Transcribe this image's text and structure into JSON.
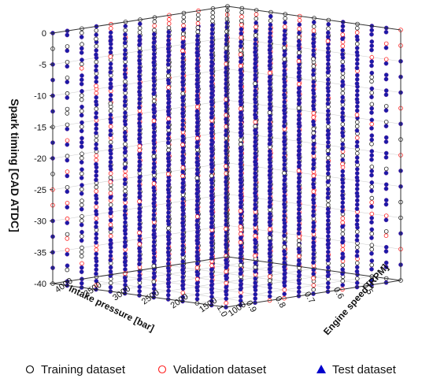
{
  "chart_data": {
    "type": "scatter",
    "title": "",
    "axes": {
      "x": {
        "label": "Intake pressure [bar]",
        "range": [
          0.4,
          1.0
        ],
        "ticks": [
          "0.5",
          "0.6",
          "0.7",
          "0.8",
          "0.9",
          "1.0"
        ]
      },
      "y": {
        "label": "Engine speed [RPM]",
        "range": [
          1000,
          4000
        ],
        "ticks": [
          "1000",
          "1500",
          "2000",
          "2500",
          "3000",
          "3500",
          "4000"
        ]
      },
      "z": {
        "label": "Spark timing [CAD ATDC]",
        "range": [
          -40,
          0
        ],
        "ticks": [
          "0",
          "-5",
          "-10",
          "-15",
          "-20",
          "-25",
          "-30",
          "-35",
          "-40"
        ]
      }
    },
    "grid": true,
    "series": [
      {
        "name": "Training dataset",
        "marker": "open-circle",
        "color": "#000000",
        "x": [
          0.4,
          0.45,
          0.5,
          0.55,
          0.6,
          0.65,
          0.7,
          0.75,
          0.8,
          0.85,
          0.9,
          0.95,
          1.0
        ],
        "y": [
          1000,
          1250,
          1500,
          1750,
          2000,
          2250,
          2500,
          2750,
          3000,
          3250,
          3500,
          3750,
          4000
        ],
        "z": [
          0,
          -2.5,
          -5,
          -7.5,
          -10,
          -12.5,
          -15,
          -17.5,
          -20,
          -22.5,
          -25,
          -27.5,
          -30,
          -32.5,
          -35,
          -37.5,
          -40
        ]
      },
      {
        "name": "Validation dataset",
        "marker": "open-circle",
        "color": "#ff2020"
      },
      {
        "name": "Test dataset",
        "marker": "filled-triangle",
        "color": "#0000cc"
      }
    ],
    "legend": {
      "position": "bottom",
      "items": [
        {
          "label": "Training dataset",
          "symbol": "○",
          "color": "#000000"
        },
        {
          "label": "Validation dataset",
          "symbol": "○",
          "color": "#ff2020"
        },
        {
          "label": "Test dataset",
          "symbol": "▲",
          "color": "#0000cc"
        }
      ]
    }
  }
}
